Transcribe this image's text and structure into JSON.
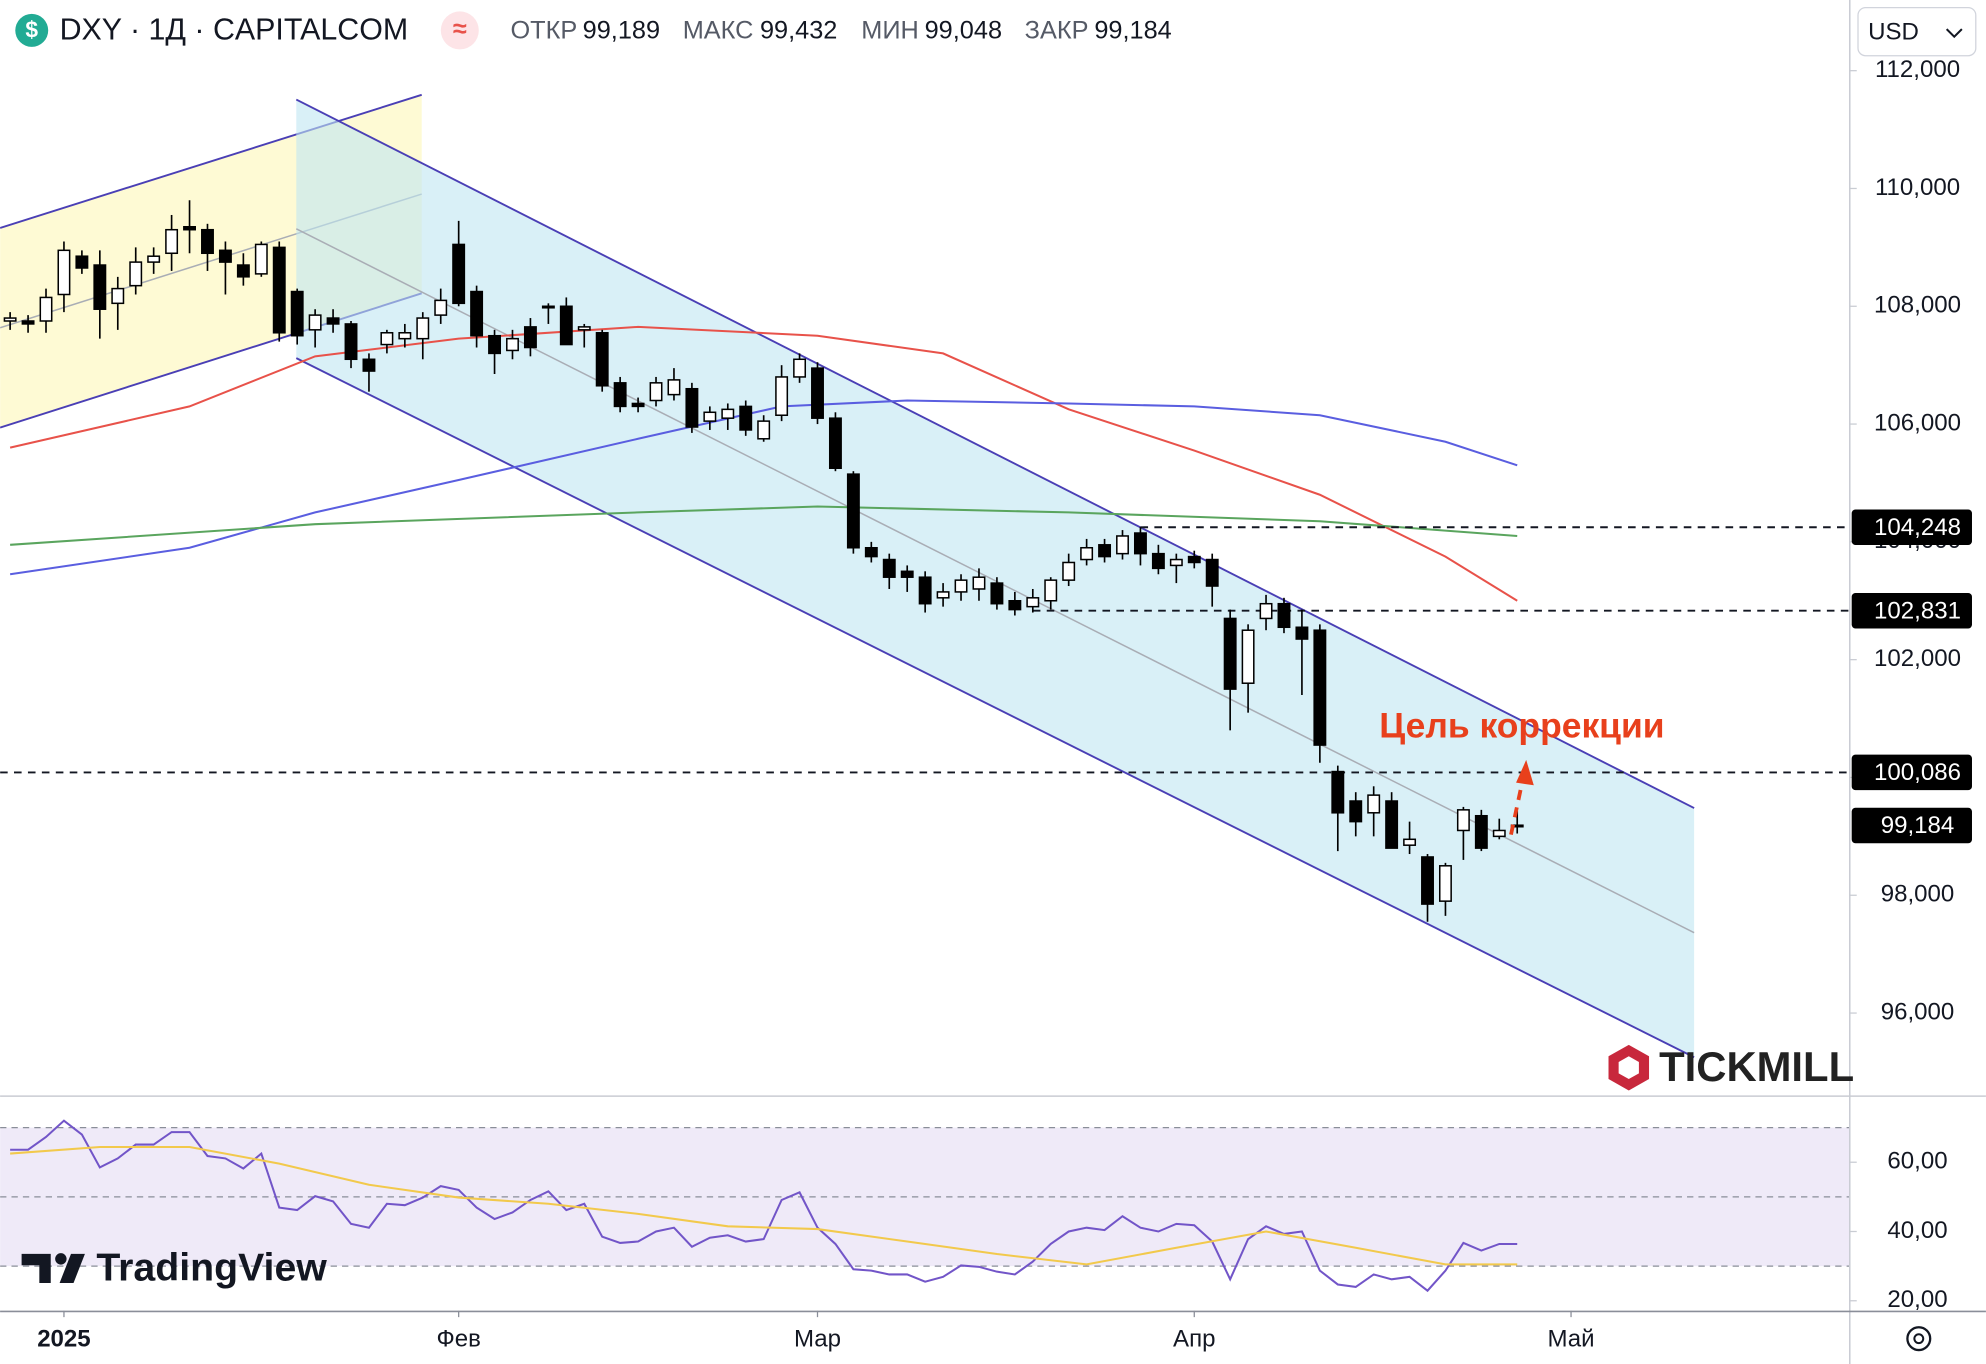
{
  "header": {
    "symbol": "DXY · 1Д · CAPITALCOM",
    "ohlc": [
      {
        "label": "ОТКР",
        "value": "99,189"
      },
      {
        "label": "МАКС",
        "value": "99,432"
      },
      {
        "label": "МИН",
        "value": "99,048"
      },
      {
        "label": "ЗАКР",
        "value": "99,184"
      }
    ],
    "currency": "USD"
  },
  "logos": {
    "broker": "TICKMILL",
    "platform": "TradingView"
  },
  "chart_data": {
    "type": "candlestick",
    "up_color": "#ffffff",
    "down_color": "#000000",
    "xlim": [
      -0.56,
      102.5
    ],
    "xticks": [
      {
        "value": 3,
        "label": "2025"
      },
      {
        "value": 25,
        "label": "Фев"
      },
      {
        "value": 45,
        "label": "Мар"
      },
      {
        "value": 66,
        "label": "Апр"
      },
      {
        "value": 87,
        "label": "Май"
      }
    ],
    "ylim": [
      94.6,
      113.2
    ],
    "yticks": [
      {
        "value": 96,
        "label": "96,000"
      },
      {
        "value": 98,
        "label": "98,000"
      },
      {
        "value": 100,
        "label": "100,000"
      },
      {
        "value": 102,
        "label": "102,000"
      },
      {
        "value": 104,
        "label": "104,000"
      },
      {
        "value": 106,
        "label": "106,000"
      },
      {
        "value": 108,
        "label": "108,000"
      },
      {
        "value": 110,
        "label": "110,000"
      },
      {
        "value": 112,
        "label": "112,000"
      }
    ],
    "candles": [
      [
        107.75,
        107.9,
        107.6,
        107.8
      ],
      [
        107.75,
        107.85,
        107.55,
        107.7
      ],
      [
        107.75,
        108.3,
        107.55,
        108.15
      ],
      [
        108.2,
        109.1,
        107.9,
        108.95
      ],
      [
        108.85,
        108.95,
        108.55,
        108.65
      ],
      [
        108.7,
        108.95,
        107.45,
        107.95
      ],
      [
        108.05,
        108.5,
        107.6,
        108.3
      ],
      [
        108.35,
        109.0,
        108.2,
        108.75
      ],
      [
        108.75,
        109.0,
        108.55,
        108.85
      ],
      [
        108.9,
        109.55,
        108.6,
        109.3
      ],
      [
        109.35,
        109.8,
        108.9,
        109.3
      ],
      [
        109.3,
        109.4,
        108.6,
        108.9
      ],
      [
        108.95,
        109.1,
        108.2,
        108.75
      ],
      [
        108.7,
        108.9,
        108.35,
        108.5
      ],
      [
        108.55,
        109.1,
        108.5,
        109.05
      ],
      [
        109.0,
        109.1,
        107.4,
        107.55
      ],
      [
        108.25,
        108.3,
        107.35,
        107.5
      ],
      [
        107.6,
        107.95,
        107.3,
        107.85
      ],
      [
        107.8,
        107.95,
        107.55,
        107.7
      ],
      [
        107.7,
        107.75,
        106.95,
        107.1
      ],
      [
        107.1,
        107.2,
        106.55,
        106.9
      ],
      [
        107.35,
        107.6,
        107.2,
        107.55
      ],
      [
        107.45,
        107.7,
        107.3,
        107.55
      ],
      [
        107.45,
        107.9,
        107.1,
        107.8
      ],
      [
        107.85,
        108.3,
        107.7,
        108.1
      ],
      [
        109.05,
        109.45,
        108.0,
        108.05
      ],
      [
        108.25,
        108.35,
        107.3,
        107.5
      ],
      [
        107.5,
        107.6,
        106.85,
        107.2
      ],
      [
        107.25,
        107.6,
        107.1,
        107.45
      ],
      [
        107.65,
        107.8,
        107.15,
        107.3
      ],
      [
        107.98,
        108.05,
        107.7,
        108.0
      ],
      [
        108.0,
        108.15,
        107.35,
        107.35
      ],
      [
        107.6,
        107.7,
        107.3,
        107.65
      ],
      [
        107.55,
        107.6,
        106.55,
        106.65
      ],
      [
        106.7,
        106.8,
        106.2,
        106.3
      ],
      [
        106.35,
        106.45,
        106.2,
        106.3
      ],
      [
        106.4,
        106.8,
        106.3,
        106.7
      ],
      [
        106.5,
        106.95,
        106.4,
        106.75
      ],
      [
        106.6,
        106.7,
        105.85,
        105.95
      ],
      [
        106.05,
        106.3,
        105.9,
        106.2
      ],
      [
        106.1,
        106.35,
        105.9,
        106.25
      ],
      [
        106.3,
        106.4,
        105.8,
        105.9
      ],
      [
        105.75,
        106.15,
        105.7,
        106.05
      ],
      [
        106.15,
        107.0,
        106.05,
        106.8
      ],
      [
        106.8,
        107.2,
        106.7,
        107.1
      ],
      [
        106.95,
        107.05,
        106.0,
        106.1
      ],
      [
        106.1,
        106.2,
        105.2,
        105.25
      ],
      [
        105.15,
        105.2,
        103.8,
        103.9
      ],
      [
        103.9,
        104.0,
        103.65,
        103.75
      ],
      [
        103.7,
        103.8,
        103.2,
        103.4
      ],
      [
        103.5,
        103.6,
        103.15,
        103.4
      ],
      [
        103.4,
        103.5,
        102.8,
        102.95
      ],
      [
        103.05,
        103.3,
        102.9,
        103.15
      ],
      [
        103.15,
        103.45,
        103.0,
        103.35
      ],
      [
        103.2,
        103.55,
        103.0,
        103.4
      ],
      [
        103.3,
        103.4,
        102.85,
        102.95
      ],
      [
        103.0,
        103.15,
        102.75,
        102.85
      ],
      [
        102.9,
        103.2,
        102.8,
        103.05
      ],
      [
        103.0,
        103.4,
        102.85,
        103.35
      ],
      [
        103.35,
        103.8,
        103.25,
        103.65
      ],
      [
        103.7,
        104.05,
        103.6,
        103.9
      ],
      [
        103.95,
        104.05,
        103.65,
        103.75
      ],
      [
        103.8,
        104.2,
        103.7,
        104.1
      ],
      [
        104.15,
        104.25,
        103.6,
        103.8
      ],
      [
        103.8,
        103.95,
        103.45,
        103.55
      ],
      [
        103.6,
        103.8,
        103.3,
        103.7
      ],
      [
        103.75,
        103.85,
        103.55,
        103.65
      ],
      [
        103.7,
        103.8,
        102.9,
        103.25
      ],
      [
        102.7,
        102.85,
        100.8,
        101.5
      ],
      [
        101.6,
        102.6,
        101.1,
        102.5
      ],
      [
        102.7,
        103.1,
        102.5,
        102.95
      ],
      [
        102.95,
        103.05,
        102.45,
        102.55
      ],
      [
        102.55,
        102.85,
        101.4,
        102.35
      ],
      [
        102.5,
        102.6,
        100.25,
        100.55
      ],
      [
        100.1,
        100.2,
        98.75,
        99.4
      ],
      [
        99.6,
        99.75,
        99.0,
        99.25
      ],
      [
        99.4,
        99.85,
        99.0,
        99.7
      ],
      [
        99.6,
        99.75,
        98.8,
        98.8
      ],
      [
        98.85,
        99.25,
        98.7,
        98.95
      ],
      [
        98.65,
        98.7,
        97.55,
        97.85
      ],
      [
        97.9,
        98.55,
        97.65,
        98.5
      ],
      [
        99.1,
        99.5,
        98.6,
        99.45
      ],
      [
        99.35,
        99.45,
        98.75,
        98.8
      ],
      [
        99.0,
        99.3,
        98.95,
        99.1
      ],
      [
        99.189,
        99.432,
        99.048,
        99.184
      ]
    ],
    "moving_averages": [
      {
        "color": "#e8524a",
        "x": [
          0,
          10,
          17,
          25,
          35,
          45,
          52,
          59,
          66,
          73,
          80,
          84
        ],
        "values": [
          105.6,
          106.3,
          107.15,
          107.45,
          107.65,
          107.5,
          107.2,
          106.25,
          105.55,
          104.8,
          103.75,
          103.0
        ]
      },
      {
        "color": "#5a5ee0",
        "x": [
          0,
          10,
          17,
          25,
          35,
          43,
          50,
          59,
          66,
          73,
          80,
          84
        ],
        "values": [
          103.45,
          103.9,
          104.5,
          105.05,
          105.75,
          106.3,
          106.4,
          106.35,
          106.3,
          106.15,
          105.7,
          105.3
        ]
      },
      {
        "color": "#5aa55e",
        "x": [
          0,
          17,
          35,
          45,
          59,
          73,
          84
        ],
        "values": [
          103.95,
          104.3,
          104.5,
          104.6,
          104.5,
          104.35,
          104.1
        ]
      }
    ],
    "channels": [
      {
        "x": [
          -0.56,
          22.94
        ],
        "upper": [
          109.33,
          111.59
        ],
        "lower": [
          105.94,
          108.22
        ],
        "fill": "#fdf6b8",
        "line": "#4a3fb5"
      },
      {
        "x": [
          15.95,
          93.86
        ],
        "upper": [
          111.51,
          99.48
        ],
        "lower": [
          107.12,
          95.25
        ],
        "fill": "#bfe6f2",
        "line": "#4a3fb5"
      }
    ],
    "levels": [
      {
        "value": 104.248,
        "label": "104,248",
        "from": 63
      },
      {
        "value": 102.831,
        "label": "102,831",
        "from": 57
      },
      {
        "value": 100.086,
        "label": "100,086"
      }
    ],
    "last_price": {
      "value": 99.184,
      "label": "99,184"
    },
    "annotation": "Цель коррекции",
    "rsi": {
      "ylim": [
        17.1,
        78.9
      ],
      "yticks": [
        {
          "value": 20,
          "label": "20,00"
        },
        {
          "value": 40,
          "label": "40,00"
        },
        {
          "value": 60,
          "label": "60,00"
        }
      ],
      "bands": [
        30,
        50,
        70
      ],
      "band_fill": "#efeaf8",
      "color": "#7255c8",
      "values": [
        63.6,
        63.6,
        67.3,
        72.0,
        68.0,
        58.5,
        61.1,
        65.1,
        65.1,
        68.7,
        68.7,
        61.8,
        61.1,
        58.2,
        62.5,
        46.9,
        46.2,
        50.2,
        48.7,
        42.2,
        41.1,
        48.0,
        47.6,
        49.8,
        53.1,
        52.0,
        46.9,
        43.6,
        45.5,
        49.1,
        51.6,
        46.2,
        48.0,
        38.5,
        36.7,
        37.1,
        40.0,
        41.1,
        35.6,
        38.2,
        38.9,
        37.1,
        37.8,
        49.1,
        51.3,
        41.1,
        36.4,
        29.1,
        28.7,
        27.6,
        27.6,
        25.5,
        26.9,
        30.2,
        29.8,
        28.4,
        27.6,
        31.3,
        36.4,
        40.0,
        41.1,
        40.4,
        44.4,
        41.1,
        40.0,
        42.2,
        41.8,
        37.1,
        26.2,
        37.8,
        41.5,
        39.3,
        40.0,
        28.7,
        24.7,
        24.0,
        27.6,
        26.2,
        26.9,
        22.9,
        28.7,
        36.7,
        34.5,
        36.4,
        36.4
      ],
      "ma": {
        "color": "#f2c94c",
        "x": [
          0,
          5,
          10,
          15,
          20,
          25,
          30,
          35,
          40,
          45,
          50,
          55,
          60,
          65,
          70,
          75,
          80,
          84
        ],
        "values": [
          62.5,
          64.4,
          64.4,
          59.6,
          53.5,
          49.8,
          48.0,
          45.1,
          41.5,
          40.7,
          37.1,
          33.5,
          30.5,
          35.3,
          40.0,
          35.3,
          30.5,
          30.5
        ]
      }
    }
  }
}
